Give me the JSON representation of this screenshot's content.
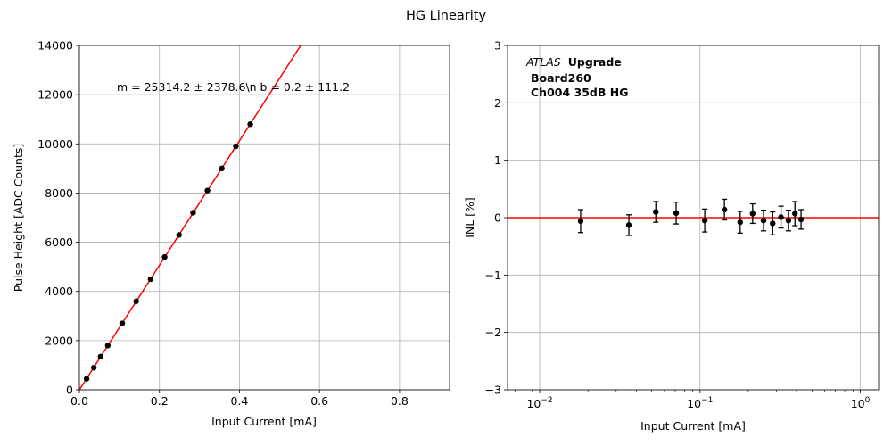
{
  "figure": {
    "title": "HG Linearity"
  },
  "chart_data": [
    {
      "type": "scatter",
      "xlabel": "Input Current [mA]",
      "ylabel": "Pulse Height [ADC Counts]",
      "xlim": [
        0,
        0.925
      ],
      "ylim": [
        0,
        14000
      ],
      "x_ticks": [
        0,
        0.2,
        0.4,
        0.6,
        0.8
      ],
      "x_tick_labels": [
        "0.0",
        "0.2",
        "0.4",
        "0.6",
        "0.8"
      ],
      "y_ticks": [
        0,
        2000,
        4000,
        6000,
        8000,
        10000,
        12000,
        14000
      ],
      "y_tick_labels": [
        "0",
        "2000",
        "4000",
        "6000",
        "8000",
        "10000",
        "12000",
        "14000"
      ],
      "grid": true,
      "annotation": "m = 25314.2 ± 2378.6\\n b = 0.2 ± 111.2",
      "fit": {
        "slope": 25314.2,
        "intercept": 0.2,
        "color": "#ff0000"
      },
      "points": {
        "color": "#000000",
        "x": [
          0.018,
          0.036,
          0.053,
          0.071,
          0.107,
          0.142,
          0.178,
          0.213,
          0.249,
          0.284,
          0.32,
          0.356,
          0.391,
          0.427
        ],
        "y": [
          450,
          900,
          1350,
          1800,
          2700,
          3600,
          4500,
          5400,
          6300,
          7200,
          8100,
          9000,
          9900,
          10800
        ]
      }
    },
    {
      "type": "scatter",
      "xlabel": "Input Current [mA]",
      "ylabel": "INL [%]",
      "xscale": "log",
      "xlim": [
        0.0063,
        1.3
      ],
      "ylim": [
        -3,
        3
      ],
      "x_ticks": [
        0.01,
        0.1,
        1
      ],
      "x_tick_labels": [
        {
          "base": "10",
          "exp": "−2"
        },
        {
          "base": "10",
          "exp": "−1"
        },
        {
          "base": "10",
          "exp": "0"
        }
      ],
      "y_ticks": [
        -3,
        -2,
        -1,
        0,
        1,
        2,
        3
      ],
      "y_tick_labels": [
        "−3",
        "−2",
        "−1",
        "0",
        "1",
        "2",
        "3"
      ],
      "grid": true,
      "annotation": {
        "italic": "ATLAS",
        "bold": "Upgrade",
        "lines": [
          "Board260",
          "Ch004 35dB HG"
        ]
      },
      "reference_line": {
        "y": 0,
        "color": "#ff0000"
      },
      "points": {
        "color": "#000000",
        "x": [
          0.018,
          0.036,
          0.053,
          0.071,
          0.107,
          0.142,
          0.178,
          0.213,
          0.249,
          0.284,
          0.32,
          0.356,
          0.391,
          0.427
        ],
        "y": [
          -0.06,
          -0.13,
          0.1,
          0.08,
          -0.05,
          0.14,
          -0.08,
          0.07,
          -0.05,
          -0.1,
          0.01,
          -0.05,
          0.07,
          -0.03
        ],
        "yerr": [
          0.2,
          0.18,
          0.18,
          0.19,
          0.2,
          0.18,
          0.19,
          0.17,
          0.18,
          0.2,
          0.19,
          0.18,
          0.21,
          0.17
        ]
      }
    }
  ]
}
